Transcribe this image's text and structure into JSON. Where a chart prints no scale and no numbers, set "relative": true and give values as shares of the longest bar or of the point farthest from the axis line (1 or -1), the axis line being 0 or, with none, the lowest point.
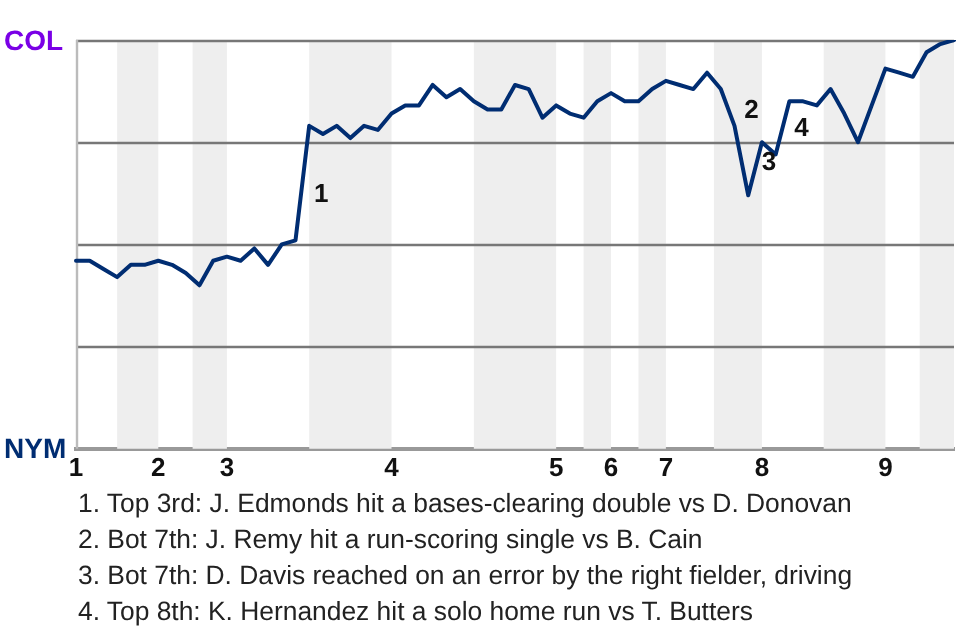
{
  "chart_data": {
    "type": "line",
    "relative": true,
    "categories": [
      "1",
      null,
      null,
      null,
      null,
      null,
      "2",
      null,
      null,
      null,
      null,
      "3",
      null,
      null,
      null,
      null,
      null,
      null,
      null,
      null,
      null,
      null,
      null,
      "4",
      null,
      null,
      null,
      null,
      null,
      null,
      null,
      null,
      null,
      null,
      null,
      "5",
      null,
      null,
      null,
      "6",
      null,
      null,
      null,
      "7",
      null,
      null,
      null,
      null,
      null,
      null,
      "8",
      null,
      null,
      null,
      null,
      null,
      null,
      null,
      null,
      "9",
      null,
      null,
      null,
      null,
      null
    ],
    "series": [
      {
        "color": "#002d72",
        "values": [
          0.46,
          0.46,
          0.44,
          0.42,
          0.45,
          0.45,
          0.46,
          0.45,
          0.43,
          0.4,
          0.46,
          0.47,
          0.46,
          0.49,
          0.45,
          0.5,
          0.51,
          0.79,
          0.77,
          0.79,
          0.76,
          0.79,
          0.78,
          0.82,
          0.84,
          0.84,
          0.89,
          0.86,
          0.88,
          0.85,
          0.83,
          0.83,
          0.89,
          0.88,
          0.81,
          0.84,
          0.82,
          0.81,
          0.85,
          0.87,
          0.85,
          0.85,
          0.88,
          0.9,
          0.89,
          0.88,
          0.92,
          0.88,
          0.79,
          0.62,
          0.75,
          0.72,
          0.85,
          0.85,
          0.84,
          0.88,
          0.82,
          0.75,
          0.84,
          0.93,
          0.92,
          0.91,
          0.97,
          0.99,
          1
        ]
      }
    ],
    "grid": "y",
    "marker": "none",
    "line_style": "solid",
    "annotations": [
      "COL",
      "NYM",
      "1",
      "2",
      "3",
      "4",
      "1. Top 3rd: J. Edmonds hit a bases-clearing double vs D. Donovan",
      "2. Bot 7th: J. Remy hit a run-scoring single vs B. Cain",
      "3. Bot 7th: D. Davis reached on an error by the right fielder, driving",
      "4. Top 8th: K. Hernandez hit a solo home run vs T. Butters"
    ]
  }
}
